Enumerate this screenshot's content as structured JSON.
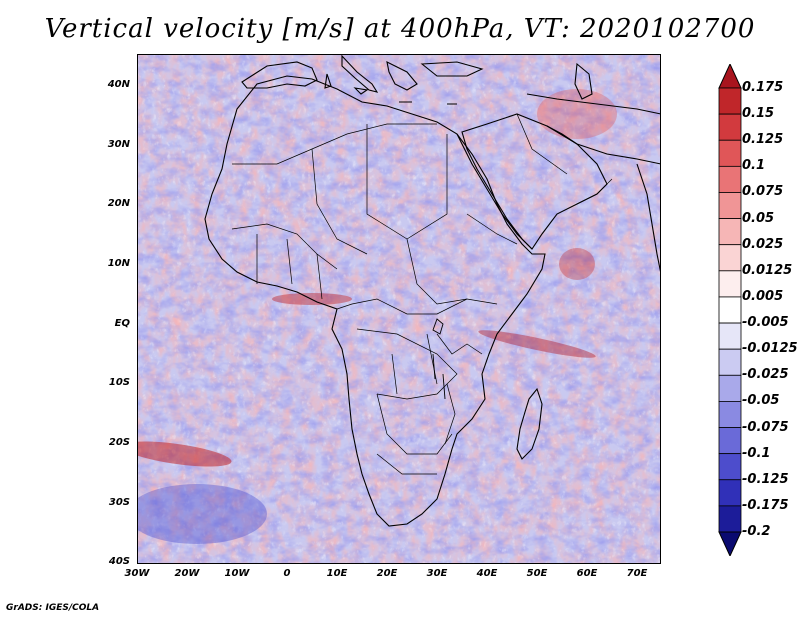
{
  "title": "Vertical velocity [m/s] at 400hPa, VT: 2020102700",
  "footer": "GrADS: IGES/COLA",
  "latitude_labels": [
    "40N",
    "30N",
    "20N",
    "10N",
    "EQ",
    "10S",
    "20S",
    "30S",
    "40S"
  ],
  "longitude_labels": [
    "30W",
    "20W",
    "10W",
    "0",
    "10E",
    "20E",
    "30E",
    "40E",
    "50E",
    "60E",
    "70E"
  ],
  "colorbar": {
    "labels": [
      "0.175",
      "0.15",
      "0.125",
      "0.1",
      "0.075",
      "0.05",
      "0.025",
      "0.0125",
      "0.005",
      "-0.005",
      "-0.0125",
      "-0.025",
      "-0.05",
      "-0.075",
      "-0.1",
      "-0.125",
      "-0.175",
      "-0.2"
    ],
    "colors": [
      "#a8141e",
      "#c0262a",
      "#d23a3e",
      "#e05658",
      "#e97476",
      "#f09596",
      "#f6b6b6",
      "#fad4d4",
      "#fdeeee",
      "#ffffff",
      "#e6e6f8",
      "#cbcbf2",
      "#a9a9ea",
      "#8a8ae2",
      "#6a6ad8",
      "#4d4dcc",
      "#3030b8",
      "#1c1c99",
      "#0a0a70"
    ]
  },
  "map": {
    "land_outline_color": "#000000",
    "background_field_color": "#d8d8f4"
  }
}
